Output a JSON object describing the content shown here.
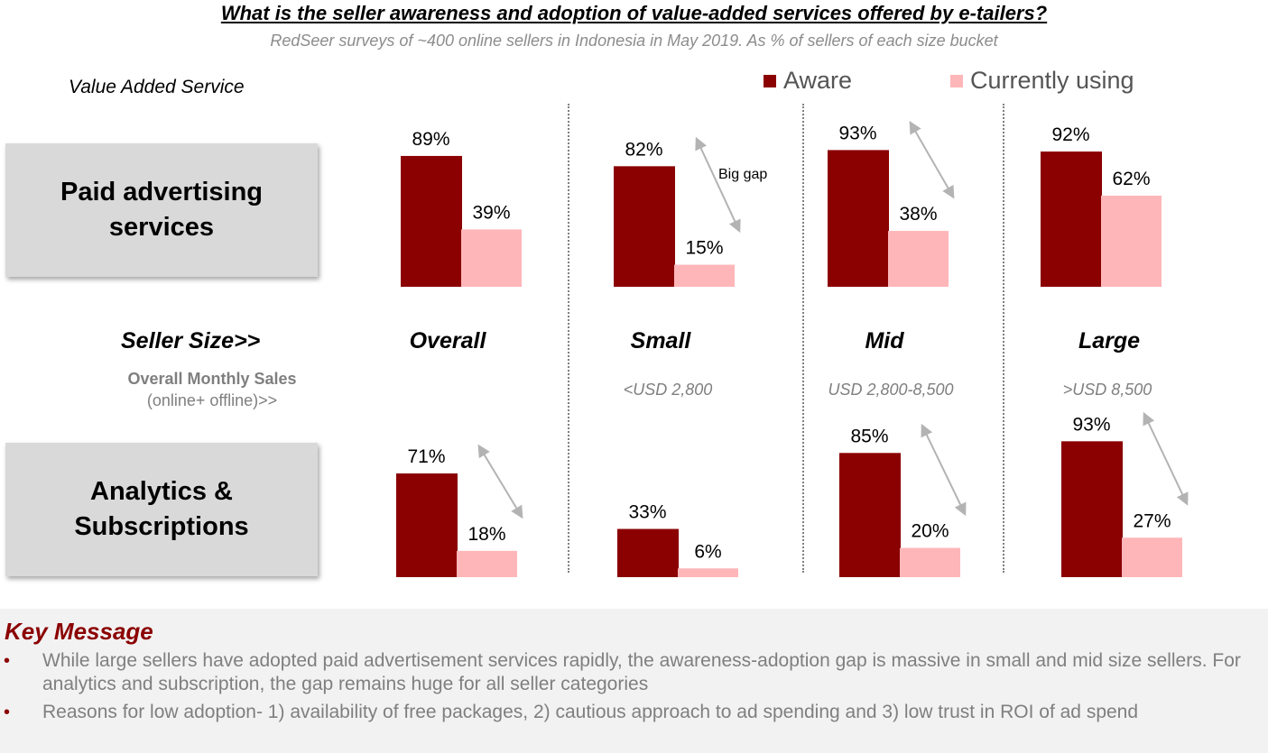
{
  "title": "What is the seller awareness and adoption of value-added services offered by e-tailers?",
  "subtitle": "RedSeer surveys of ~400 online sellers in Indonesia in May 2019. As % of sellers of each size bucket",
  "value_added_service_label": "Value Added Service",
  "legend": {
    "aware": {
      "label": "Aware",
      "color": "#8b0000"
    },
    "using": {
      "label": "Currently using",
      "color": "#ffb6b9"
    }
  },
  "rows": {
    "paid": {
      "line1": "Paid advertising",
      "line2": "services"
    },
    "analytics": {
      "line1": "Analytics &",
      "line2": "Subscriptions"
    }
  },
  "seller_size_label": "Seller Size>>",
  "segments": [
    {
      "name": "Overall",
      "range": ""
    },
    {
      "name": "Small",
      "range": "<USD 2,800"
    },
    {
      "name": "Mid",
      "range": "USD 2,800-8,500"
    },
    {
      "name": "Large",
      "range": ">USD 8,500"
    }
  ],
  "sales_label": {
    "line1": "Overall Monthly Sales",
    "line2": "(online+ offline)>>"
  },
  "annotation": "Big gap",
  "chart_data": [
    {
      "type": "bar",
      "title": "Paid advertising services",
      "categories": [
        "Overall",
        "Small",
        "Mid",
        "Large"
      ],
      "series": [
        {
          "name": "Aware",
          "values": [
            89,
            82,
            93,
            92
          ],
          "labels": [
            "89%",
            "82%",
            "93%",
            "92%"
          ]
        },
        {
          "name": "Currently using",
          "values": [
            39,
            15,
            38,
            62
          ],
          "labels": [
            "39%",
            "15%",
            "38%",
            "62%"
          ]
        }
      ],
      "ylim": [
        0,
        100
      ],
      "gap_arrows": [
        "Small",
        "Mid"
      ]
    },
    {
      "type": "bar",
      "title": "Analytics & Subscriptions",
      "categories": [
        "Overall",
        "Small",
        "Mid",
        "Large"
      ],
      "series": [
        {
          "name": "Aware",
          "values": [
            71,
            33,
            85,
            93
          ],
          "labels": [
            "71%",
            "33%",
            "85%",
            "93%"
          ]
        },
        {
          "name": "Currently using",
          "values": [
            18,
            6,
            20,
            27
          ],
          "labels": [
            "18%",
            "6%",
            "20%",
            "27%"
          ]
        }
      ],
      "ylim": [
        0,
        100
      ],
      "gap_arrows": [
        "Overall",
        "Mid",
        "Large"
      ]
    }
  ],
  "key_message": {
    "title": "Key Message",
    "bullets": [
      "While large sellers have adopted paid advertisement services rapidly, the awareness-adoption gap is massive in small and mid size sellers.  For analytics and subscription, the gap remains huge for all seller categories",
      "Reasons for low adoption- 1) availability of free packages, 2) cautious approach to ad spending and 3) low trust in ROI of ad spend"
    ]
  }
}
